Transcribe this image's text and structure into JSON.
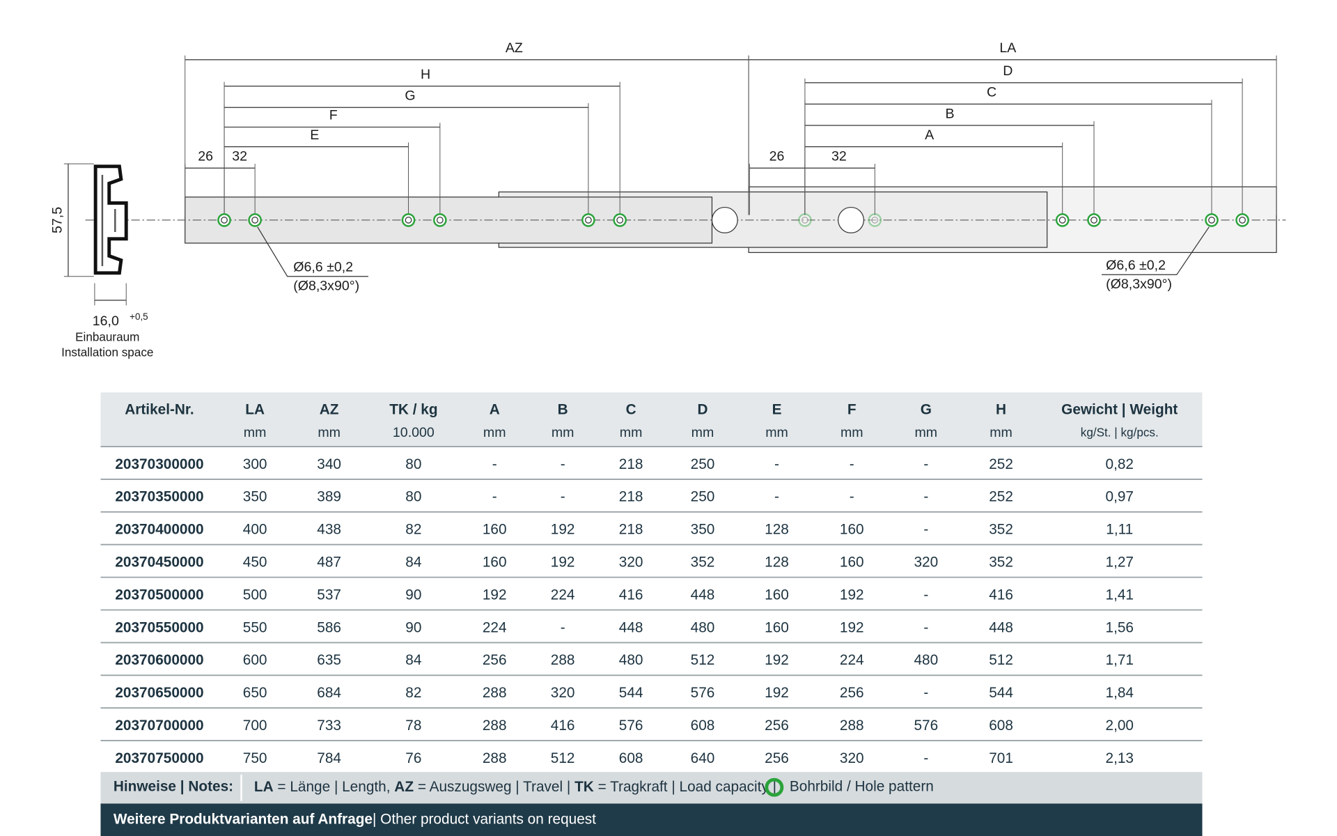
{
  "drawing": {
    "dimensions": [
      "AZ",
      "LA",
      "H",
      "G",
      "F",
      "E",
      "D",
      "C",
      "B",
      "A",
      "26",
      "32",
      "26",
      "32"
    ],
    "hole_left": [
      "Ø6,6 ±0,2",
      "(Ø8,3x90°)"
    ],
    "hole_right": [
      "Ø6,6 ±0,2",
      "(Ø8,3x90°)"
    ],
    "profile": {
      "height": "57,5",
      "width": "16,0",
      "tolerance": "+0,5",
      "caption": [
        "Einbauraum",
        "Installation space"
      ]
    }
  },
  "table": {
    "header": [
      [
        "Artikel-Nr.",
        ""
      ],
      [
        "LA",
        "mm"
      ],
      [
        "AZ",
        "mm"
      ],
      [
        "TK / kg",
        "10.000"
      ],
      [
        "A",
        "mm"
      ],
      [
        "B",
        "mm"
      ],
      [
        "C",
        "mm"
      ],
      [
        "D",
        "mm"
      ],
      [
        "E",
        "mm"
      ],
      [
        "F",
        "mm"
      ],
      [
        "G",
        "mm"
      ],
      [
        "H",
        "mm"
      ],
      [
        "Gewicht | Weight",
        "kg/St. | kg/pcs."
      ]
    ],
    "rows": [
      [
        "20370300000",
        "300",
        "340",
        "80",
        "-",
        "-",
        "218",
        "250",
        "-",
        "-",
        "-",
        "252",
        "0,82"
      ],
      [
        "20370350000",
        "350",
        "389",
        "80",
        "-",
        "-",
        "218",
        "250",
        "-",
        "-",
        "-",
        "252",
        "0,97"
      ],
      [
        "20370400000",
        "400",
        "438",
        "82",
        "160",
        "192",
        "218",
        "350",
        "128",
        "160",
        "-",
        "352",
        "1,11"
      ],
      [
        "20370450000",
        "450",
        "487",
        "84",
        "160",
        "192",
        "320",
        "352",
        "128",
        "160",
        "320",
        "352",
        "1,27"
      ],
      [
        "20370500000",
        "500",
        "537",
        "90",
        "192",
        "224",
        "416",
        "448",
        "160",
        "192",
        "-",
        "416",
        "1,41"
      ],
      [
        "20370550000",
        "550",
        "586",
        "90",
        "224",
        "-",
        "448",
        "480",
        "160",
        "192",
        "-",
        "448",
        "1,56"
      ],
      [
        "20370600000",
        "600",
        "635",
        "84",
        "256",
        "288",
        "480",
        "512",
        "192",
        "224",
        "480",
        "512",
        "1,71"
      ],
      [
        "20370650000",
        "650",
        "684",
        "82",
        "288",
        "320",
        "544",
        "576",
        "192",
        "256",
        "-",
        "544",
        "1,84"
      ],
      [
        "20370700000",
        "700",
        "733",
        "78",
        "288",
        "416",
        "576",
        "608",
        "256",
        "288",
        "576",
        "608",
        "2,00"
      ],
      [
        "20370750000",
        "750",
        "784",
        "76",
        "288",
        "512",
        "608",
        "640",
        "256",
        "320",
        "-",
        "701",
        "2,13"
      ]
    ]
  },
  "notes": {
    "label": "Hinweise | Notes:",
    "items": [
      "LA",
      "= Länge | Length,",
      "AZ",
      "= Auszugsweg | Travel |",
      "TK",
      "= Tragkraft | Load capacity |",
      "Bohrbild / Hole pattern"
    ]
  },
  "footer": [
    "Weitere Produktvarianten auf Anfrage",
    "| Other product variants on request"
  ]
}
